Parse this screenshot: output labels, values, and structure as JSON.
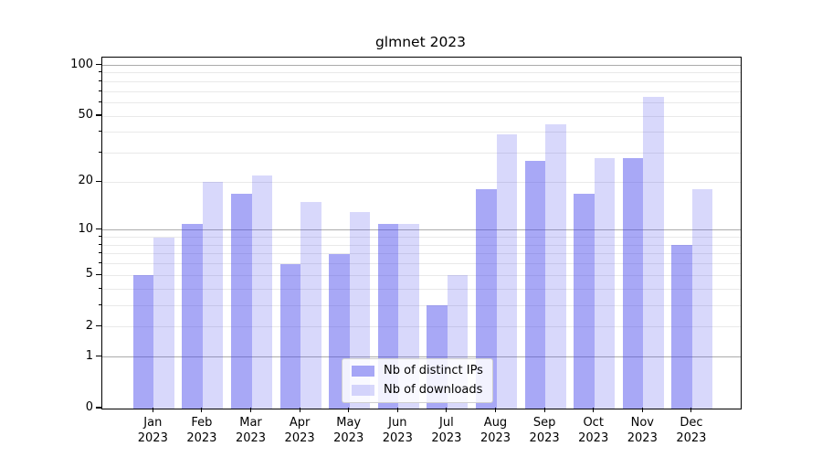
{
  "title": "glmnet 2023",
  "colors": {
    "bar_ips": "rgba(70,70,235,0.47)",
    "bar_downloads": "rgba(70,70,235,0.21)",
    "grid_major": "#ababab",
    "grid_minor": "#e9e9e9",
    "spine": "#000000",
    "text": "#000000"
  },
  "legend": {
    "items": [
      {
        "label": "Nb of distinct IPs",
        "series": "ips"
      },
      {
        "label": "Nb of downloads",
        "series": "downloads"
      }
    ]
  },
  "y_axis": {
    "scale": "log1p",
    "labeled_ticks": [
      {
        "label": "100",
        "value": 100
      },
      {
        "label": "50",
        "value": 50
      },
      {
        "label": "20",
        "value": 20
      },
      {
        "label": "10",
        "value": 10
      },
      {
        "label": "5",
        "value": 5
      },
      {
        "label": "2",
        "value": 2
      },
      {
        "label": "1",
        "value": 1
      },
      {
        "label": "0",
        "value": 0
      }
    ],
    "major_grid_values": [
      1,
      10,
      100
    ],
    "minor_grid_values": [
      2,
      3,
      4,
      5,
      6,
      7,
      8,
      9,
      20,
      30,
      40,
      50,
      60,
      70,
      80,
      90
    ]
  },
  "x_axis": {
    "year": "2023",
    "months": [
      "Jan",
      "Feb",
      "Mar",
      "Apr",
      "May",
      "Jun",
      "Jul",
      "Aug",
      "Sep",
      "Oct",
      "Nov",
      "Dec"
    ]
  },
  "chart_data": {
    "type": "bar",
    "title": "glmnet 2023",
    "categories": [
      "Jan 2023",
      "Feb 2023",
      "Mar 2023",
      "Apr 2023",
      "May 2023",
      "Jun 2023",
      "Jul 2023",
      "Aug 2023",
      "Sep 2023",
      "Oct 2023",
      "Nov 2023",
      "Dec 2023"
    ],
    "series": [
      {
        "name": "Nb of distinct IPs",
        "values": [
          5,
          11,
          17,
          6,
          7,
          11,
          3,
          18,
          27,
          17,
          28,
          8
        ]
      },
      {
        "name": "Nb of downloads",
        "values": [
          9,
          20,
          22,
          15,
          13,
          11,
          5,
          39,
          45,
          28,
          65,
          18
        ]
      }
    ],
    "xlabel": "",
    "ylabel": "",
    "yscale": "log1p",
    "ytick_values": [
      0,
      1,
      2,
      5,
      10,
      20,
      50,
      100
    ],
    "ylim": [
      0,
      114
    ],
    "grid": true,
    "legend_position": "lower center"
  }
}
